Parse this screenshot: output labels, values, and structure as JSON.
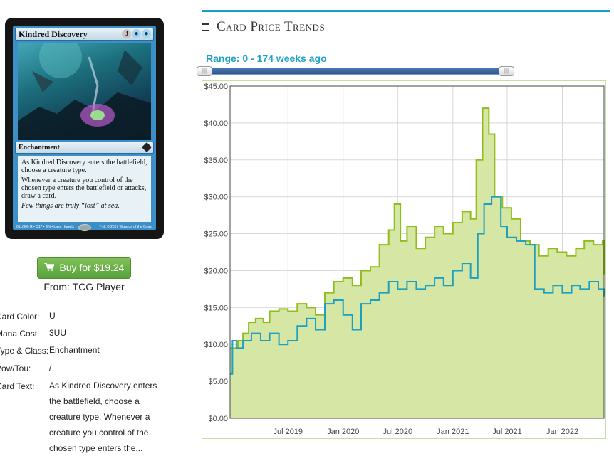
{
  "card": {
    "name": "Kindred Discovery",
    "mana": [
      "3",
      "U",
      "U"
    ],
    "type_line": "Enchantment",
    "rules_1": "As Kindred Discovery enters the battlefield, choose a creature type.",
    "rules_2": "Whenever a creature you control of the chosen type enters the battlefield or attacks, draw a card.",
    "flavor": "Few things are truly “lost” at sea.",
    "footer_left": "011/309 R • C17 • EN • Lake Hurwitz",
    "footer_right": "™ & © 2017 Wizards of the Coast"
  },
  "buy": {
    "label": "Buy for $19.24",
    "icon": "cart-icon",
    "from": "From: TCG Player"
  },
  "details": [
    {
      "key": "Card Color:",
      "value": "U"
    },
    {
      "key": "Mana Cost",
      "value": "3UU"
    },
    {
      "key": "Type & Class:",
      "value": "Enchantment"
    },
    {
      "key": "Pow/Tou:",
      "value": "/"
    },
    {
      "key": "Card Text:",
      "value": "As Kindred Discovery enters the battlefield, choose a creature type. Whenever a creature you control of the chosen type enters the..."
    }
  ],
  "section": {
    "title": "Card Price Trends",
    "icon": "calendar-icon"
  },
  "range": {
    "label": "Range: 0 - 174 weeks ago",
    "from_weeks": 0,
    "to_weeks": 174
  },
  "colors": {
    "accent": "#14a3c7",
    "paper_line": "#8fbd1a",
    "paper_fill": "#d4e6a0",
    "foil_line": "#1aa0c0",
    "buy_button": "#6bb34a"
  },
  "chart_data": {
    "type": "area",
    "title": "",
    "xlabel": "",
    "ylabel": "",
    "ylim": [
      0,
      45
    ],
    "xlim": [
      "2018-12-20",
      "2022-05-20"
    ],
    "yticks": [
      "$0.00",
      "$5.00",
      "$10.00",
      "$15.00",
      "$20.00",
      "$25.00",
      "$30.00",
      "$35.00",
      "$40.00",
      "$45.00"
    ],
    "xticks": [
      {
        "label": "Jul 2019",
        "date": "2019-07-01"
      },
      {
        "label": "Jan 2020",
        "date": "2020-01-01"
      },
      {
        "label": "Jul 2020",
        "date": "2020-07-01"
      },
      {
        "label": "Jan 2021",
        "date": "2021-01-01"
      },
      {
        "label": "Jul 2021",
        "date": "2021-07-01"
      },
      {
        "label": "Jan 2022",
        "date": "2022-01-01"
      }
    ],
    "grid": true,
    "series": [
      {
        "points": [
          [
            "2018-12-20",
            9.5
          ],
          [
            "2019-01-15",
            10.5
          ],
          [
            "2019-02-01",
            11.5
          ],
          [
            "2019-02-20",
            13.0
          ],
          [
            "2019-03-15",
            13.5
          ],
          [
            "2019-04-10",
            13.0
          ],
          [
            "2019-05-01",
            14.5
          ],
          [
            "2019-06-01",
            14.8
          ],
          [
            "2019-07-01",
            14.5
          ],
          [
            "2019-08-01",
            15.5
          ],
          [
            "2019-09-01",
            15.0
          ],
          [
            "2019-10-01",
            14.0
          ],
          [
            "2019-11-01",
            17.0
          ],
          [
            "2019-12-01",
            18.5
          ],
          [
            "2020-01-01",
            19.0
          ],
          [
            "2020-02-01",
            18.0
          ],
          [
            "2020-03-01",
            20.0
          ],
          [
            "2020-04-01",
            20.5
          ],
          [
            "2020-05-01",
            23.5
          ],
          [
            "2020-06-01",
            25.5
          ],
          [
            "2020-06-20",
            29.0
          ],
          [
            "2020-07-10",
            24.0
          ],
          [
            "2020-08-01",
            26.0
          ],
          [
            "2020-09-01",
            23.0
          ],
          [
            "2020-10-01",
            24.5
          ],
          [
            "2020-11-01",
            26.0
          ],
          [
            "2020-12-01",
            25.0
          ],
          [
            "2021-01-01",
            26.5
          ],
          [
            "2021-02-01",
            28.0
          ],
          [
            "2021-03-01",
            27.0
          ],
          [
            "2021-03-20",
            35.0
          ],
          [
            "2021-04-10",
            42.0
          ],
          [
            "2021-05-01",
            38.5
          ],
          [
            "2021-05-20",
            30.0
          ],
          [
            "2021-06-15",
            28.5
          ],
          [
            "2021-07-15",
            27.0
          ],
          [
            "2021-08-15",
            24.0
          ],
          [
            "2021-09-15",
            23.5
          ],
          [
            "2021-10-15",
            22.0
          ],
          [
            "2021-11-15",
            23.0
          ],
          [
            "2021-12-15",
            22.5
          ],
          [
            "2022-01-15",
            22.0
          ],
          [
            "2022-02-15",
            23.0
          ],
          [
            "2022-03-15",
            24.0
          ],
          [
            "2022-04-15",
            23.5
          ],
          [
            "2022-05-15",
            24.0
          ],
          [
            "2022-05-20",
            19.5
          ]
        ]
      },
      {
        "points": [
          [
            "2018-12-20",
            6.0
          ],
          [
            "2018-12-28",
            10.5
          ],
          [
            "2019-01-10",
            9.5
          ],
          [
            "2019-02-01",
            10.5
          ],
          [
            "2019-03-01",
            11.5
          ],
          [
            "2019-04-01",
            10.5
          ],
          [
            "2019-05-01",
            11.5
          ],
          [
            "2019-06-01",
            10.0
          ],
          [
            "2019-07-01",
            10.5
          ],
          [
            "2019-08-01",
            12.5
          ],
          [
            "2019-09-01",
            13.5
          ],
          [
            "2019-10-01",
            12.0
          ],
          [
            "2019-11-01",
            15.5
          ],
          [
            "2019-12-01",
            16.0
          ],
          [
            "2020-01-01",
            14.0
          ],
          [
            "2020-02-01",
            12.0
          ],
          [
            "2020-03-01",
            15.5
          ],
          [
            "2020-04-01",
            16.0
          ],
          [
            "2020-05-01",
            17.0
          ],
          [
            "2020-06-01",
            18.5
          ],
          [
            "2020-07-01",
            17.5
          ],
          [
            "2020-08-01",
            18.5
          ],
          [
            "2020-09-01",
            17.5
          ],
          [
            "2020-10-01",
            18.0
          ],
          [
            "2020-11-01",
            19.0
          ],
          [
            "2020-12-01",
            18.0
          ],
          [
            "2021-01-01",
            20.0
          ],
          [
            "2021-02-01",
            21.0
          ],
          [
            "2021-03-01",
            19.0
          ],
          [
            "2021-03-25",
            25.0
          ],
          [
            "2021-04-15",
            29.0
          ],
          [
            "2021-05-10",
            30.0
          ],
          [
            "2021-06-10",
            26.0
          ],
          [
            "2021-07-01",
            24.5
          ],
          [
            "2021-08-01",
            24.0
          ],
          [
            "2021-09-01",
            23.5
          ],
          [
            "2021-10-01",
            17.5
          ],
          [
            "2021-11-01",
            17.0
          ],
          [
            "2021-12-01",
            18.0
          ],
          [
            "2022-01-01",
            17.0
          ],
          [
            "2022-02-01",
            18.0
          ],
          [
            "2022-03-01",
            17.5
          ],
          [
            "2022-04-01",
            18.5
          ],
          [
            "2022-05-01",
            17.5
          ],
          [
            "2022-05-20",
            16.5
          ]
        ]
      }
    ]
  }
}
